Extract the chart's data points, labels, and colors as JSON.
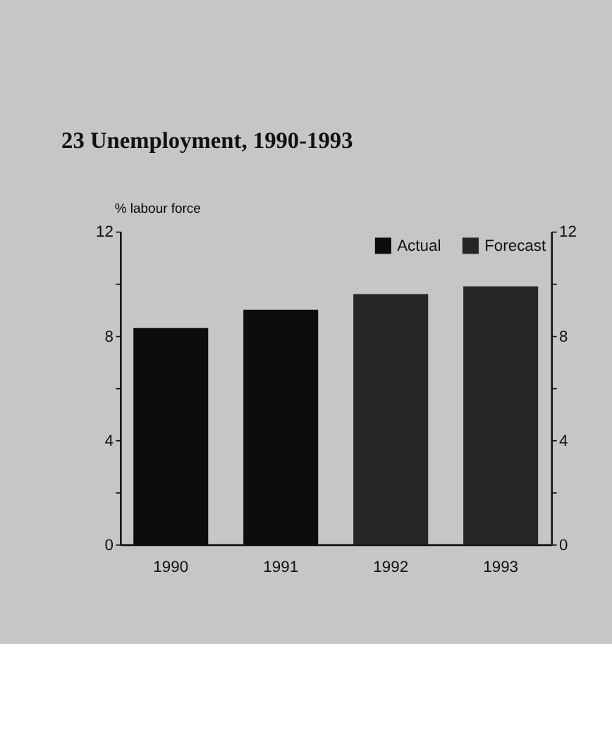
{
  "chart_data": {
    "type": "bar",
    "title": "23 Unemployment, 1990-1993",
    "ylabel": "% labour force",
    "categories": [
      "1990",
      "1991",
      "1992",
      "1993"
    ],
    "series": [
      {
        "name": "Actual",
        "color": "#0d0d0d",
        "values": [
          8.3,
          9.0,
          null,
          null
        ]
      },
      {
        "name": "Forecast",
        "color": "#262626",
        "values": [
          null,
          null,
          9.6,
          9.9
        ]
      }
    ],
    "ylim": [
      0,
      12
    ],
    "yticks": [
      0,
      {
        "value": 2,
        "label": null
      },
      4,
      {
        "value": 6,
        "label": null
      },
      8,
      {
        "value": 10,
        "label": null
      },
      12
    ],
    "y2lim": [
      0,
      12
    ],
    "y2ticks": [
      0,
      {
        "value": 2,
        "label": null
      },
      4,
      {
        "value": 6,
        "label": null
      },
      8,
      {
        "value": 10,
        "label": null
      },
      12
    ],
    "legend": "top right",
    "grid": false
  }
}
